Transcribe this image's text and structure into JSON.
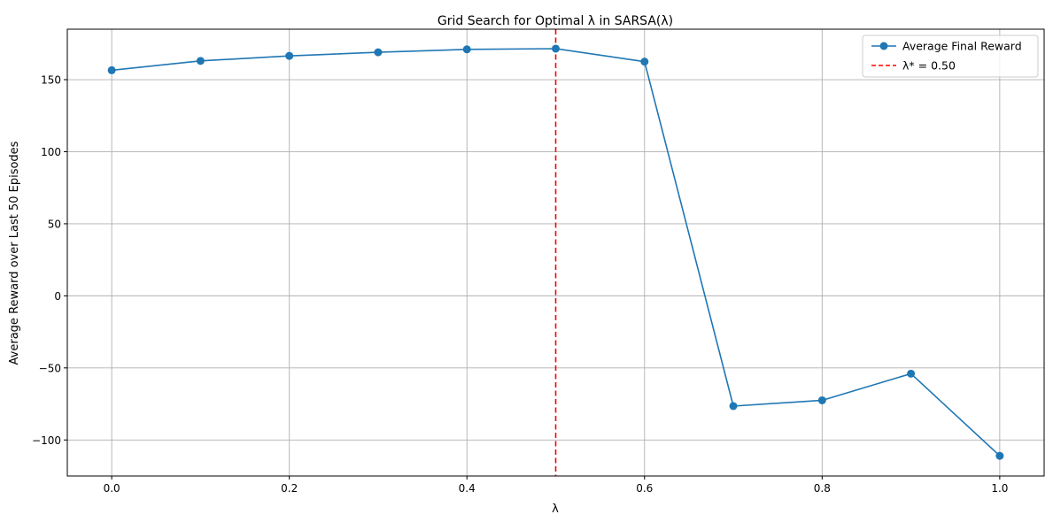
{
  "chart_data": {
    "type": "line",
    "title": "Grid Search for Optimal λ in SARSA(λ)",
    "xlabel": "λ",
    "ylabel": "Average Reward over Last 50 Episodes",
    "xlim": [
      -0.05,
      1.05
    ],
    "ylim": [
      -125,
      185
    ],
    "x_ticks": [
      0.0,
      0.2,
      0.4,
      0.6,
      0.8,
      1.0
    ],
    "x_tick_labels": [
      "0.0",
      "0.2",
      "0.4",
      "0.6",
      "0.8",
      "1.0"
    ],
    "y_ticks": [
      -100,
      -50,
      0,
      50,
      100,
      150
    ],
    "y_tick_labels": [
      "−100",
      "−50",
      "0",
      "50",
      "100",
      "150"
    ],
    "grid": true,
    "legend_position": "top-right",
    "series": [
      {
        "name": "Average Final Reward",
        "color": "#1f77b4",
        "marker": "circle",
        "x": [
          0.0,
          0.1,
          0.2,
          0.3,
          0.4,
          0.5,
          0.6,
          0.7,
          0.8,
          0.9,
          1.0
        ],
        "y": [
          156.5,
          163.0,
          166.5,
          169.0,
          171.0,
          171.5,
          162.5,
          -76.5,
          -72.5,
          -54.0,
          -111.0
        ]
      }
    ],
    "reference_lines": [
      {
        "orientation": "vertical",
        "x": 0.5,
        "label": "λ* = 0.50",
        "color": "#ff0000",
        "style": "dashed"
      }
    ]
  }
}
